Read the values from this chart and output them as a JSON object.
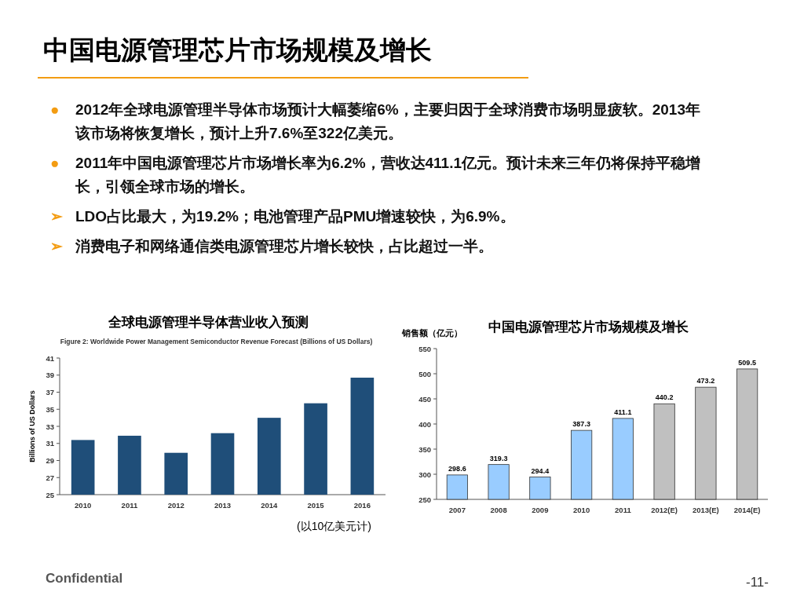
{
  "chart_data": [
    {
      "type": "other",
      "title": "中国电源管理芯片市场规模及增长",
      "annotations": [
        "● 2012年全球电源管理半导体市场预计大幅萎缩6%，主要归因于全球消费市场明显疲软。2013年该市场将恢复增长，预计上升7.6%至322亿美元。",
        "● 2011年中国电源管理芯片市场增长率为6.2%，营收达411.1亿元。预计未来三年仍将保持平稳增长，引领全球市场的增长。",
        "➢ LDO占比最大，为19.2%；电池管理产品PMU增速较快，为6.9%。",
        "➢ 消费电子和网络通信类电源管理芯片增长较快，占比超过一半。",
        "Confidential",
        "-11-"
      ]
    },
    {
      "type": "bar",
      "title": "全球电源管理半导体营业收入预测",
      "subtitle": "Figure 2: Worldwide Power Management Semiconductor Revenue Forecast (Billions of US Dollars)",
      "ylabel": "Billions of US Dollars",
      "categories": [
        "2010",
        "2011",
        "2012",
        "2013",
        "2014",
        "2015",
        "2016"
      ],
      "values": [
        31.4,
        31.9,
        29.9,
        32.2,
        34.0,
        35.7,
        38.7
      ],
      "color": "#1f4e79",
      "ylim": [
        25,
        41
      ],
      "yticks": [
        25,
        27,
        29,
        31,
        33,
        35,
        37,
        39,
        41
      ],
      "annotations": [
        "(以10亿美元计)"
      ]
    },
    {
      "type": "bar",
      "title": "中国电源管理芯片市场规模及增长",
      "ylabel": "销售额（亿元）",
      "categories": [
        "2007",
        "2008",
        "2009",
        "2010",
        "2011",
        "2012(E)",
        "2013(E)",
        "2014(E)"
      ],
      "values": [
        298.6,
        319.3,
        294.4,
        387.3,
        411.1,
        440.2,
        473.2,
        509.5
      ],
      "colors": [
        "#99ccff",
        "#99ccff",
        "#99ccff",
        "#99ccff",
        "#99ccff",
        "#c0c0c0",
        "#c0c0c0",
        "#c0c0c0"
      ],
      "ylim": [
        250,
        550
      ],
      "yticks": [
        250,
        300,
        350,
        400,
        450,
        500,
        550
      ],
      "data_labels": true
    }
  ]
}
